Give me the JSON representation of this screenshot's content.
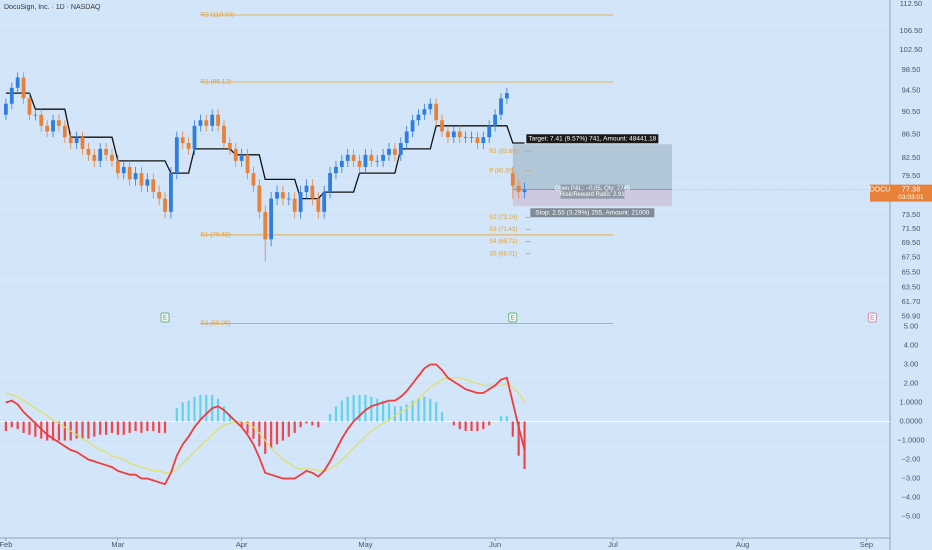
{
  "chart_data": [
    {
      "type": "candlestick",
      "title": "DocuSign, Inc. · 1D · NASDAQ",
      "symbol": "DOCU",
      "countdown": "03:03:01",
      "log_scale": true,
      "ylim": [
        59.5,
        113.4
      ],
      "yticks": [
        {
          "value": 112.5,
          "label": "112.50"
        },
        {
          "value": 106.5,
          "label": "106.50"
        },
        {
          "value": 102.5,
          "label": "102.50"
        },
        {
          "value": 98.5,
          "label": "98.50"
        },
        {
          "value": 94.5,
          "label": "94.50"
        },
        {
          "value": 90.5,
          "label": "90.50"
        },
        {
          "value": 86.5,
          "label": "86.50"
        },
        {
          "value": 82.5,
          "label": "82.50"
        },
        {
          "value": 79.5,
          "label": "79.50"
        },
        {
          "value": 76.5,
          "label": "76.50"
        },
        {
          "value": 73.5,
          "label": "73.50"
        },
        {
          "value": 71.5,
          "label": "71.50"
        },
        {
          "value": 69.5,
          "label": "69.50"
        },
        {
          "value": 67.5,
          "label": "67.50"
        },
        {
          "value": 65.5,
          "label": "65.50"
        },
        {
          "value": 63.5,
          "label": "63.50"
        },
        {
          "value": 61.7,
          "label": "61.70"
        },
        {
          "value": 59.9,
          "label": "59.90"
        }
      ],
      "xlim": [
        -1,
        150
      ],
      "xticks": [
        {
          "value": 0,
          "label": "Feb"
        },
        {
          "value": 19,
          "label": "Mar"
        },
        {
          "value": 40,
          "label": "Apr"
        },
        {
          "value": 61,
          "label": "May"
        },
        {
          "value": 83,
          "label": "Jun"
        },
        {
          "value": 103,
          "label": "Jul"
        },
        {
          "value": 125,
          "label": "Aug"
        },
        {
          "value": 146,
          "label": "Sep"
        }
      ],
      "up_color": "#2f7de1",
      "down_color": "#e8823a",
      "open": [
        90,
        92,
        95,
        97,
        93,
        90,
        90,
        88,
        87,
        89,
        88,
        86,
        85,
        86,
        84,
        83,
        82,
        84,
        83,
        82,
        80,
        81,
        79,
        80,
        78,
        79,
        77,
        76,
        74,
        80,
        86,
        85,
        84,
        88,
        89,
        88,
        90,
        88,
        85,
        84,
        82,
        83,
        80,
        78,
        74,
        70,
        76,
        77,
        76,
        76,
        74,
        77,
        78,
        76,
        74,
        77,
        80,
        81,
        82,
        83,
        82,
        81,
        83,
        82,
        82,
        83,
        84,
        83,
        85,
        87,
        89,
        90,
        91,
        92,
        89,
        87,
        86,
        87,
        86,
        86,
        86,
        85,
        86,
        88,
        90,
        93,
        80,
        78,
        77
      ],
      "high": [
        93,
        96,
        98,
        98,
        94,
        91,
        91,
        89,
        90,
        90,
        89,
        87,
        87,
        87,
        85,
        84,
        85,
        85,
        84,
        83,
        82,
        82,
        81,
        81,
        80,
        80,
        78,
        77,
        81,
        87,
        87,
        86,
        89,
        90,
        90,
        91,
        91,
        89,
        86,
        85,
        84,
        84,
        81,
        79,
        75,
        77,
        78,
        78,
        77,
        77,
        78,
        79,
        79,
        77,
        78,
        81,
        82,
        83,
        84,
        84,
        83,
        84,
        84,
        83,
        84,
        85,
        85,
        86,
        88,
        90,
        91,
        92,
        93,
        93,
        90,
        88,
        88,
        88,
        87,
        87,
        87,
        87,
        89,
        91,
        94,
        95,
        81,
        79,
        78.5
      ],
      "low": [
        89,
        91,
        94,
        92,
        89,
        89,
        87,
        86,
        86,
        87,
        85,
        84,
        84,
        83,
        82,
        81,
        81,
        82,
        81,
        79,
        79,
        78,
        78,
        77,
        77,
        76,
        75,
        73,
        73,
        79,
        84,
        83,
        83,
        87,
        87,
        87,
        87,
        84,
        83,
        81,
        81,
        79,
        77,
        73,
        67,
        69,
        75,
        75,
        75,
        73,
        73,
        76,
        75,
        73,
        73,
        76,
        79,
        80,
        81,
        81,
        80,
        80,
        81,
        81,
        81,
        82,
        82,
        82,
        84,
        86,
        88,
        89,
        90,
        88,
        86,
        85,
        85,
        85,
        85,
        85,
        84,
        84,
        85,
        87,
        89,
        92,
        76,
        76,
        76
      ],
      "close": [
        92,
        95,
        97,
        93,
        90,
        90,
        88,
        87,
        89,
        88,
        86,
        85,
        86,
        84,
        83,
        82,
        84,
        83,
        82,
        80,
        81,
        79,
        80,
        78,
        79,
        77,
        76,
        74,
        80,
        86,
        85,
        84,
        88,
        89,
        88,
        90,
        88,
        85,
        84,
        82,
        83,
        80,
        78,
        74,
        70,
        76,
        77,
        76,
        76,
        74,
        77,
        78,
        76,
        74,
        77,
        80,
        81,
        82,
        83,
        82,
        81,
        83,
        82,
        82,
        83,
        84,
        83,
        85,
        87,
        89,
        90,
        91,
        92,
        89,
        87,
        86,
        87,
        86,
        86,
        86,
        85,
        86,
        88,
        90,
        93,
        94,
        78,
        77,
        77.38
      ],
      "baseline": {
        "color": "#111111",
        "values": [
          94,
          94,
          94,
          94,
          94,
          91,
          91,
          91,
          91,
          91,
          91,
          86,
          86,
          86,
          86,
          86,
          86,
          86,
          86,
          82,
          82,
          82,
          82,
          82,
          82,
          82,
          82,
          82,
          80,
          80,
          80,
          80,
          84,
          84,
          84,
          84,
          84,
          84,
          84,
          83,
          83,
          83,
          83,
          83,
          79,
          79,
          79,
          79,
          79,
          79,
          76,
          76,
          76,
          76,
          77,
          77,
          77,
          77,
          77,
          77,
          80,
          80,
          80,
          80,
          80,
          80,
          80,
          84,
          84,
          84,
          84,
          84,
          84,
          88,
          88,
          88,
          88,
          88,
          88,
          88,
          88,
          88,
          88,
          88,
          88,
          88,
          85,
          85,
          85
        ]
      },
      "level_color": "#e8a030",
      "levels_x": [
        33,
        103
      ],
      "levels": [
        {
          "value": 110.03,
          "label": "R2 (110.03)"
        },
        {
          "value": 96.12,
          "label": "R1 (96.12)"
        },
        {
          "value": 70.63,
          "label": "S1 (70.63)"
        },
        {
          "value": 59.09,
          "label": "S2 (59.09)"
        }
      ],
      "local_levels_x": [
        82,
        88
      ],
      "local_levels": [
        {
          "value": 83.6,
          "label": "R1 (83.60)"
        },
        {
          "value": 80.39,
          "label": "P (80.39)"
        },
        {
          "value": 73.14,
          "label": "S2 (73.14)"
        },
        {
          "value": 71.43,
          "label": "S3 (71.43)"
        },
        {
          "value": 69.72,
          "label": "S4 (69.72)"
        },
        {
          "value": 68.01,
          "label": "S5 (68.01)"
        }
      ],
      "position": {
        "x": [
          86,
          113
        ],
        "entry": 77.38,
        "target": 84.79,
        "stop": 74.83,
        "target_label": "Target: 7.41 (9.57%) 741, Amount: 48441.18",
        "pnl_label": "Open P&L: −0.05, Qty: 2745",
        "rr_label": "Risk/Reward Ratio: 2.91",
        "stop_label": "Stop: 2.55 (3.29%) 255, Amount: 21000"
      },
      "earnings": [
        {
          "x": 27,
          "label": "E"
        },
        {
          "x": 86,
          "label": "E"
        },
        {
          "x": 147,
          "label": "E"
        }
      ]
    },
    {
      "type": "macd",
      "ylim": [
        -5.5,
        5.5
      ],
      "yticks": [
        {
          "value": 5,
          "label": "5.00"
        },
        {
          "value": 4,
          "label": "4.00"
        },
        {
          "value": 3,
          "label": "3.00"
        },
        {
          "value": 2,
          "label": "2.00"
        },
        {
          "value": 1,
          "label": "1.0000"
        },
        {
          "value": 0,
          "label": "0.0000"
        },
        {
          "value": -1,
          "label": "−1.0000"
        },
        {
          "value": -2,
          "label": "−2.00"
        },
        {
          "value": -3,
          "label": "−3.00"
        },
        {
          "value": -4,
          "label": "−4.00"
        },
        {
          "value": -5,
          "label": "−5.00"
        }
      ],
      "xlim": [
        -1,
        150
      ],
      "histogram": {
        "pos_color": "#5fd3f0",
        "neg_color": "#f0454d",
        "values": [
          -0.5,
          -0.3,
          -0.4,
          -0.6,
          -0.7,
          -0.8,
          -0.9,
          -1.0,
          -1.0,
          -1.0,
          -1.0,
          -1.0,
          -0.9,
          -0.9,
          -0.9,
          -0.8,
          -0.7,
          -0.7,
          -0.6,
          -0.7,
          -0.7,
          -0.6,
          -0.5,
          -0.6,
          -0.5,
          -0.5,
          -0.6,
          -0.6,
          0.0,
          0.7,
          1.0,
          1.1,
          1.3,
          1.4,
          1.4,
          1.4,
          1.2,
          0.8,
          0.4,
          0.0,
          -0.3,
          -0.6,
          -0.9,
          -1.3,
          -1.7,
          -1.4,
          -1.2,
          -1.0,
          -0.8,
          -0.6,
          -0.3,
          -0.1,
          -0.2,
          -0.3,
          0.0,
          0.4,
          0.8,
          1.1,
          1.3,
          1.4,
          1.4,
          1.4,
          1.3,
          1.2,
          1.1,
          1.0,
          0.8,
          0.8,
          0.9,
          1.1,
          1.2,
          1.3,
          1.2,
          1.0,
          0.5,
          0.0,
          -0.2,
          -0.4,
          -0.5,
          -0.5,
          -0.5,
          -0.4,
          -0.2,
          0.0,
          0.3,
          0.3,
          -0.8,
          -1.8,
          -2.5
        ]
      },
      "macd": {
        "color": "#f03c3c",
        "values": [
          1.0,
          1.1,
          0.9,
          0.5,
          0.2,
          -0.1,
          -0.4,
          -0.7,
          -0.9,
          -1.1,
          -1.3,
          -1.5,
          -1.6,
          -1.8,
          -2.0,
          -2.1,
          -2.2,
          -2.3,
          -2.4,
          -2.6,
          -2.7,
          -2.8,
          -2.8,
          -3.0,
          -3.0,
          -3.1,
          -3.2,
          -3.3,
          -2.7,
          -1.8,
          -1.2,
          -0.8,
          -0.3,
          0.1,
          0.4,
          0.7,
          0.8,
          0.6,
          0.3,
          0.0,
          -0.3,
          -0.7,
          -1.2,
          -1.9,
          -2.7,
          -2.8,
          -2.9,
          -3.0,
          -3.0,
          -3.0,
          -2.8,
          -2.6,
          -2.7,
          -2.9,
          -2.6,
          -2.1,
          -1.5,
          -0.9,
          -0.4,
          0.0,
          0.3,
          0.6,
          0.8,
          0.9,
          1.0,
          1.1,
          1.1,
          1.3,
          1.6,
          2.0,
          2.4,
          2.8,
          3.0,
          3.0,
          2.7,
          2.3,
          2.1,
          1.9,
          1.7,
          1.6,
          1.5,
          1.5,
          1.7,
          1.9,
          2.2,
          2.3,
          1.0,
          -0.3,
          -1.5
        ]
      },
      "signal": {
        "color": "#e0e060",
        "values": [
          1.5,
          1.4,
          1.3,
          1.1,
          0.9,
          0.7,
          0.5,
          0.3,
          0.1,
          -0.1,
          -0.3,
          -0.5,
          -0.7,
          -0.9,
          -1.1,
          -1.3,
          -1.5,
          -1.6,
          -1.8,
          -1.9,
          -2.0,
          -2.2,
          -2.3,
          -2.4,
          -2.5,
          -2.6,
          -2.6,
          -2.7,
          -2.7,
          -2.5,
          -2.2,
          -1.9,
          -1.6,
          -1.3,
          -1.0,
          -0.7,
          -0.4,
          -0.2,
          -0.1,
          0.0,
          0.0,
          -0.1,
          -0.3,
          -0.6,
          -1.0,
          -1.4,
          -1.7,
          -2.0,
          -2.2,
          -2.4,
          -2.5,
          -2.5,
          -2.5,
          -2.6,
          -2.6,
          -2.5,
          -2.3,
          -2.0,
          -1.7,
          -1.4,
          -1.1,
          -0.8,
          -0.5,
          -0.3,
          -0.1,
          0.1,
          0.3,
          0.5,
          0.7,
          0.9,
          1.2,
          1.5,
          1.8,
          2.0,
          2.2,
          2.3,
          2.3,
          2.3,
          2.2,
          2.1,
          2.0,
          1.9,
          1.9,
          1.9,
          1.9,
          2.0,
          1.8,
          1.5,
          1.0
        ]
      }
    }
  ]
}
